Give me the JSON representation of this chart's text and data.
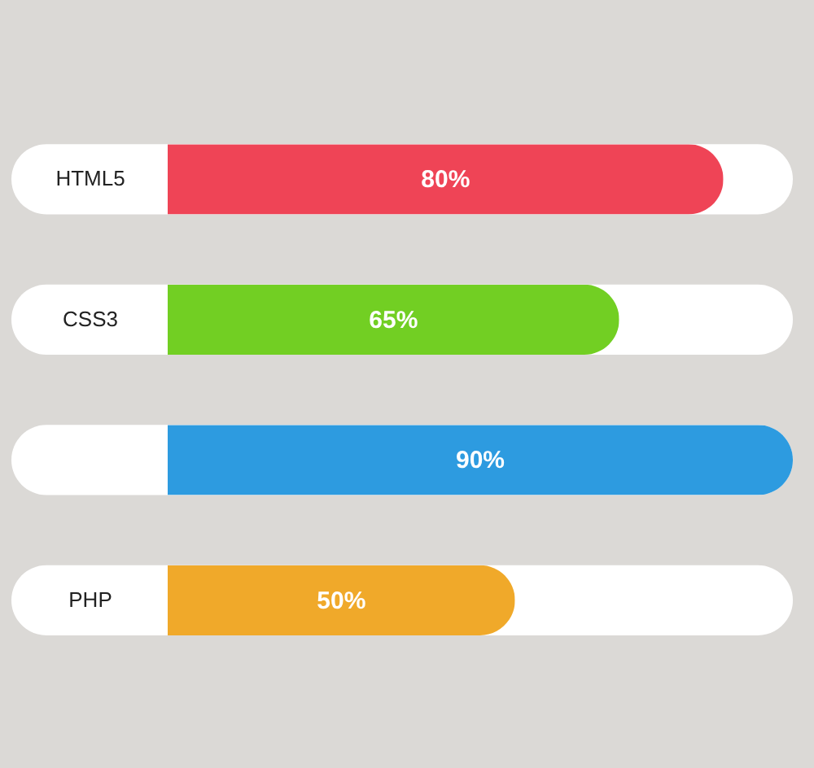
{
  "chart_data": {
    "type": "bar",
    "orientation": "horizontal",
    "categories": [
      "HTML5",
      "CSS3",
      null,
      "PHP"
    ],
    "values": [
      80,
      65,
      90,
      50
    ],
    "colors": [
      "#ef4456",
      "#72cf23",
      "#2d9be0",
      "#f0a92a"
    ],
    "value_labels": [
      "80%",
      "65%",
      "90%",
      "50%"
    ]
  }
}
